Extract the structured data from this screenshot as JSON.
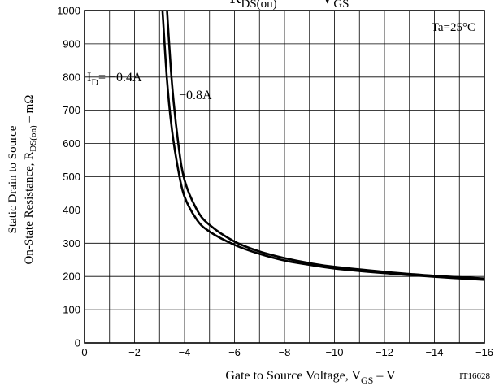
{
  "chart_data": {
    "type": "line",
    "title": "RDS(on) – VGS",
    "title_parts": {
      "main1": "R",
      "sub1": "DS(on)",
      "dash": "–",
      "main2": "V",
      "sub2": "GS"
    },
    "xlabel": "Gate to Source Voltage, VGS – V",
    "xlabel_parts": {
      "main": "Gate to Source Voltage, V",
      "sub": "GS",
      "tail": " – V"
    },
    "ylabel": "Static Drain to Source On-State Resistance, RDS(on) – mΩ",
    "ylabel_parts": {
      "line1": "Static Drain to Source",
      "line2_main": "On-State Resistance, R",
      "line2_sub": "DS(on)",
      "line2_tail": " – mΩ"
    },
    "xlim": [
      0,
      -16
    ],
    "ylim": [
      0,
      1000
    ],
    "x_ticks": [
      "0",
      "−2",
      "−4",
      "−6",
      "−8",
      "−10",
      "−12",
      "−14",
      "−16"
    ],
    "x_tick_values": [
      0,
      -2,
      -4,
      -6,
      -8,
      -10,
      -12,
      -14,
      -16
    ],
    "y_ticks": [
      "0",
      "100",
      "200",
      "300",
      "400",
      "500",
      "600",
      "700",
      "800",
      "900",
      "1000"
    ],
    "y_tick_values": [
      0,
      100,
      200,
      300,
      400,
      500,
      600,
      700,
      800,
      900,
      1000
    ],
    "grid": true,
    "series": [
      {
        "name": "ID= −0.4A",
        "x": [
          -3.12,
          -3.3,
          -3.5,
          -3.75,
          -4,
          -4.5,
          -5,
          -6,
          -7,
          -8,
          -9,
          -10,
          -12,
          -14,
          -16
        ],
        "y": [
          1000,
          790,
          640,
          520,
          440,
          370,
          335,
          295,
          268,
          248,
          235,
          224,
          210,
          199,
          190
        ]
      },
      {
        "name": "−0.8A",
        "x": [
          -3.3,
          -3.5,
          -3.75,
          -4,
          -4.5,
          -5,
          -6,
          -7,
          -8,
          -9,
          -10,
          -12,
          -14,
          -16
        ],
        "y": [
          1000,
          780,
          600,
          490,
          400,
          355,
          305,
          275,
          255,
          240,
          229,
          214,
          202,
          194
        ]
      }
    ],
    "label_current": {
      "main": "I",
      "sub": "D",
      "tail": "= −0.4A"
    },
    "label_08": "−0.8A",
    "annotations": {
      "temperature": "Ta=25°C",
      "figure_id": "IT16628"
    }
  }
}
